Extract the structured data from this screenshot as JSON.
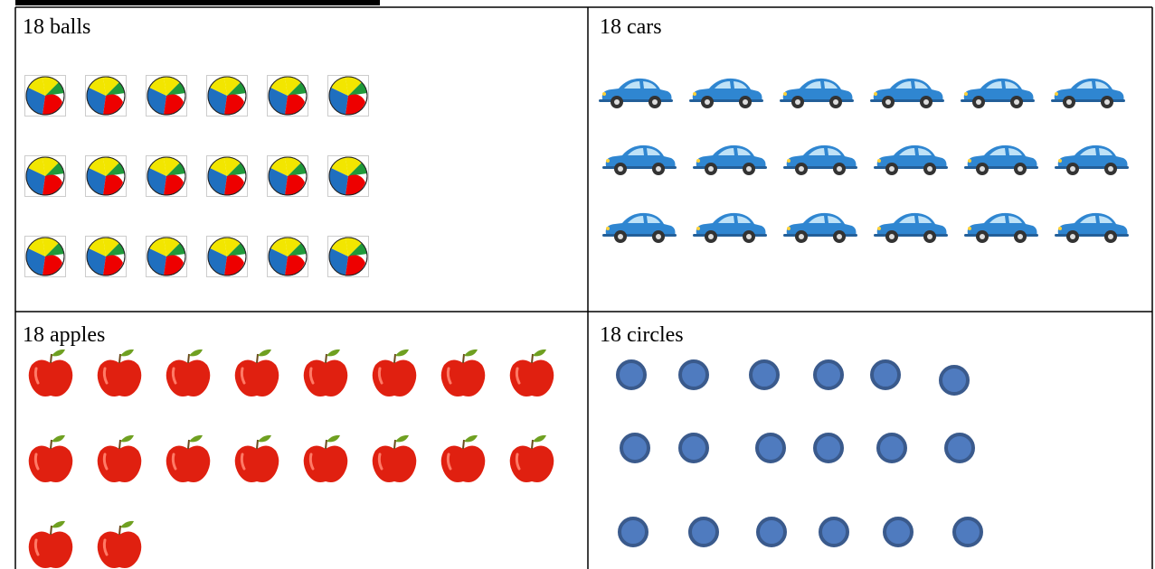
{
  "table": {
    "rows": [
      [
        "18 balls",
        "18 cars"
      ],
      [
        "18 apples",
        "18 circles"
      ]
    ]
  }
}
